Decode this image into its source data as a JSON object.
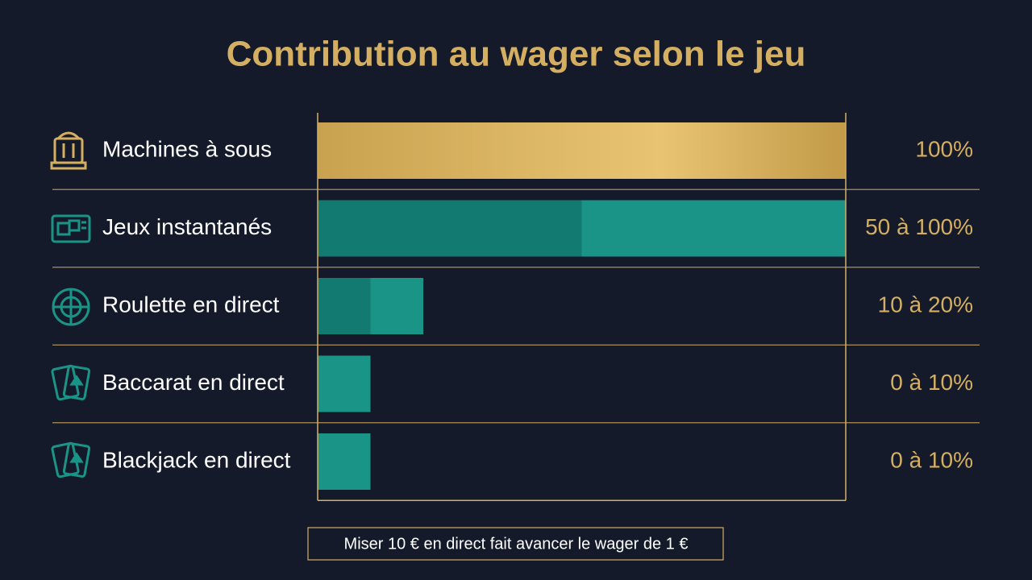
{
  "chart_data": {
    "type": "range-bar",
    "title": "Contribution au wager selon le jeu",
    "categories": [
      "Machines à sous",
      "Jeux instantanés",
      "Roulette en direct",
      "Baccarat en direct",
      "Blackjack en direct"
    ],
    "values": [
      [
        100,
        100
      ],
      [
        50,
        100
      ],
      [
        10,
        20
      ],
      [
        0,
        10
      ],
      [
        0,
        10
      ]
    ],
    "value_labels": [
      "100%",
      "50 à 100%",
      "10 à 20%",
      "0 à 10%",
      "0 à 10%"
    ],
    "colors": [
      "#d6b160",
      "#1b9488",
      "#1b9488",
      "#1b9488",
      "#1b9488"
    ],
    "low_color": "#137a72",
    "xlim": [
      0,
      100
    ],
    "note": "Miser 10 € en direct fait avancer le wager de 1 €"
  }
}
